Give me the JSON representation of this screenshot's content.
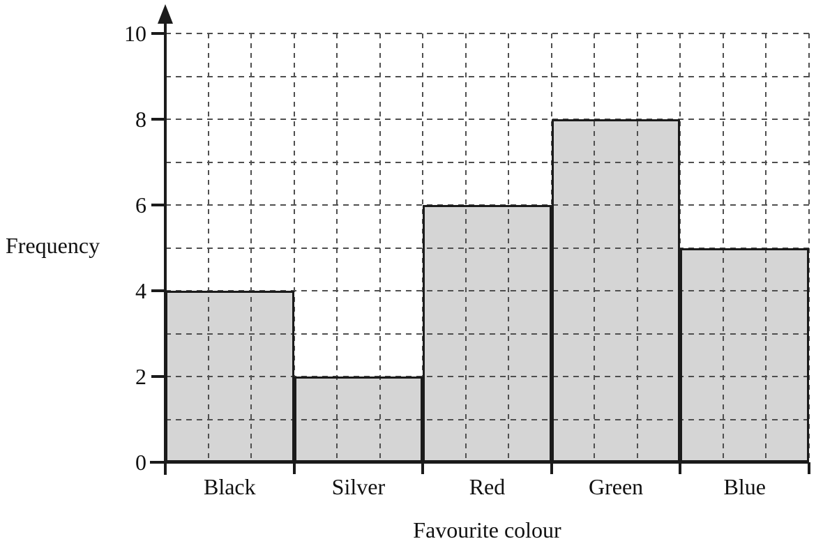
{
  "chart_data": {
    "type": "bar",
    "title": "",
    "categories": [
      "Black",
      "Silver",
      "Red",
      "Green",
      "Blue"
    ],
    "values": [
      4,
      2,
      6,
      8,
      5
    ],
    "xlabel": "Favourite colour",
    "ylabel": "Frequency",
    "ylim": [
      0,
      10
    ],
    "y_tick_labels": [
      "0",
      "2",
      "4",
      "6",
      "8",
      "10"
    ],
    "y_tick_step": 2,
    "grid": {
      "show": true,
      "style": "dashed",
      "minor_y_step": 1,
      "minor_x_per_category": 3
    },
    "legend": "none",
    "colors": {
      "bar_fill": "#d5d5d5",
      "bar_border": "#1b1b1b",
      "grid": "#4f4f4f",
      "axis": "#1b1b1b",
      "background": "#ffffff"
    }
  }
}
